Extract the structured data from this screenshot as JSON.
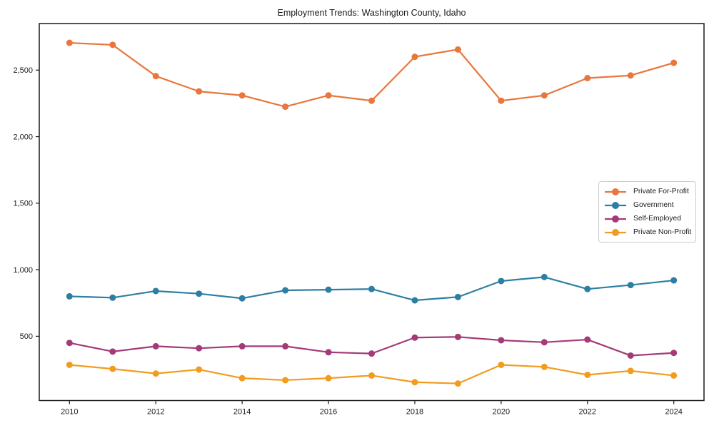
{
  "chart_data": {
    "type": "line",
    "title": "Employment Trends: Washington County, Idaho",
    "xlabel": "",
    "ylabel": "",
    "x": [
      2010,
      2011,
      2012,
      2013,
      2014,
      2015,
      2016,
      2017,
      2018,
      2019,
      2020,
      2021,
      2022,
      2023,
      2024
    ],
    "series": [
      {
        "name": "Private For-Profit",
        "color": "#E8763D",
        "values": [
          2705,
          2690,
          2455,
          2340,
          2310,
          2225,
          2310,
          2270,
          2600,
          2655,
          2270,
          2310,
          2440,
          2460,
          2555
        ]
      },
      {
        "name": "Government",
        "color": "#2C7FA3",
        "values": [
          800,
          790,
          840,
          820,
          785,
          845,
          850,
          855,
          770,
          795,
          915,
          945,
          855,
          885,
          920
        ]
      },
      {
        "name": "Self-Employed",
        "color": "#A43A78",
        "values": [
          450,
          385,
          425,
          410,
          425,
          425,
          380,
          370,
          490,
          495,
          470,
          455,
          475,
          355,
          375
        ]
      },
      {
        "name": "Private Non-Profit",
        "color": "#F19C1E",
        "values": [
          285,
          255,
          220,
          250,
          185,
          170,
          185,
          205,
          155,
          145,
          285,
          270,
          210,
          240,
          205
        ]
      }
    ],
    "xlim": [
      2009.3,
      2024.7
    ],
    "ylim": [
      17,
      2850
    ],
    "x_ticks": {
      "values": [
        2010,
        2012,
        2014,
        2016,
        2018,
        2020,
        2022,
        2024
      ],
      "labels": [
        "2010",
        "2012",
        "2014",
        "2016",
        "2018",
        "2020",
        "2022",
        "2024"
      ]
    },
    "y_ticks": {
      "values": [
        500,
        1000,
        1500,
        2000,
        2500
      ],
      "labels": [
        "500",
        "1,000",
        "1,500",
        "2,000",
        "2,500"
      ]
    },
    "grid": false,
    "marker": "circle",
    "legend_position": "center-right",
    "colors": {
      "background": "#FFFFFF",
      "spine": "#1A1A1A",
      "text": "#1A1A1A",
      "legend_border": "#CCCCCC"
    }
  }
}
